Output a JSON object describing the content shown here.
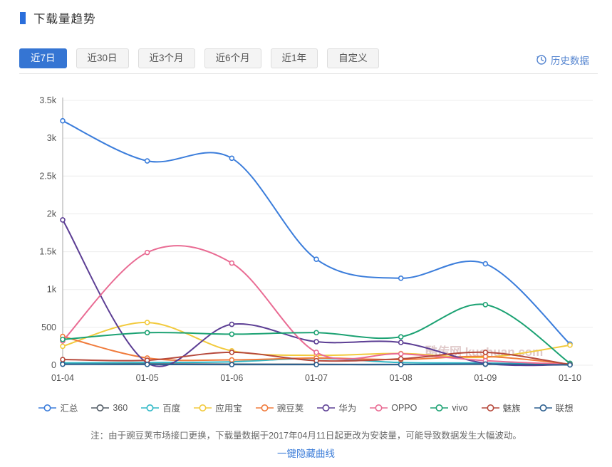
{
  "header": {
    "title": "下载量趋势"
  },
  "toolbar": {
    "tabs": [
      {
        "label": "近7日",
        "active": true
      },
      {
        "label": "近30日",
        "active": false
      },
      {
        "label": "近3个月",
        "active": false
      },
      {
        "label": "近6个月",
        "active": false
      },
      {
        "label": "近1年",
        "active": false
      },
      {
        "label": "自定义",
        "active": false
      }
    ],
    "history_link": "历史数据"
  },
  "chart_data": {
    "type": "line",
    "x": [
      "01-04",
      "01-05",
      "01-06",
      "01-07",
      "01-08",
      "01-09",
      "01-10"
    ],
    "series": [
      {
        "name": "汇总",
        "color": "#3b7ddb",
        "values": [
          3230,
          2700,
          2735,
          1400,
          1150,
          1340,
          280
        ]
      },
      {
        "name": "360",
        "color": "#525c66",
        "values": [
          25,
          18,
          14,
          12,
          10,
          12,
          6
        ]
      },
      {
        "name": "百度",
        "color": "#2fb8c6",
        "values": [
          30,
          35,
          45,
          90,
          35,
          28,
          10
        ]
      },
      {
        "name": "应用宝",
        "color": "#f2ca3d",
        "values": [
          250,
          565,
          190,
          130,
          155,
          105,
          265
        ]
      },
      {
        "name": "豌豆荚",
        "color": "#f07b3c",
        "values": [
          380,
          95,
          70,
          95,
          75,
          115,
          15
        ]
      },
      {
        "name": "华为",
        "color": "#5c3e94",
        "values": [
          1920,
          30,
          540,
          310,
          300,
          25,
          6
        ]
      },
      {
        "name": "OPPO",
        "color": "#e96b93",
        "values": [
          320,
          1490,
          1350,
          170,
          150,
          60,
          10
        ]
      },
      {
        "name": "vivo",
        "color": "#1ca273",
        "values": [
          340,
          430,
          410,
          430,
          375,
          800,
          25
        ]
      },
      {
        "name": "魅族",
        "color": "#b6493c",
        "values": [
          75,
          65,
          170,
          60,
          85,
          170,
          8
        ]
      },
      {
        "name": "联想",
        "color": "#2c5f8f",
        "values": [
          12,
          10,
          8,
          8,
          8,
          15,
          4
        ]
      }
    ],
    "ylim": [
      0,
      3500
    ],
    "ytick_values": [
      0,
      500,
      1000,
      1500,
      2000,
      2500,
      3000,
      3500
    ],
    "ytick_labels": [
      "0",
      "500",
      "1k",
      "1.5k",
      "2k",
      "2.5k",
      "3k",
      "3.5k"
    ],
    "grid": true,
    "legend_position": "bottom",
    "watermark": "酷传网 kuchuan.com"
  },
  "footer": {
    "note": "注：由于豌豆荚市场接口更换，下载量数据于2017年04月11日起更改为安装量，可能导致数据发生大幅波动。",
    "hide_link": "一键隐藏曲线"
  },
  "colors": {
    "accent_blue": "#3575d3",
    "link_blue": "#5585d0",
    "axis_label": "#555555",
    "gridline": "#ececec",
    "watermark": "#d9bdbd"
  }
}
